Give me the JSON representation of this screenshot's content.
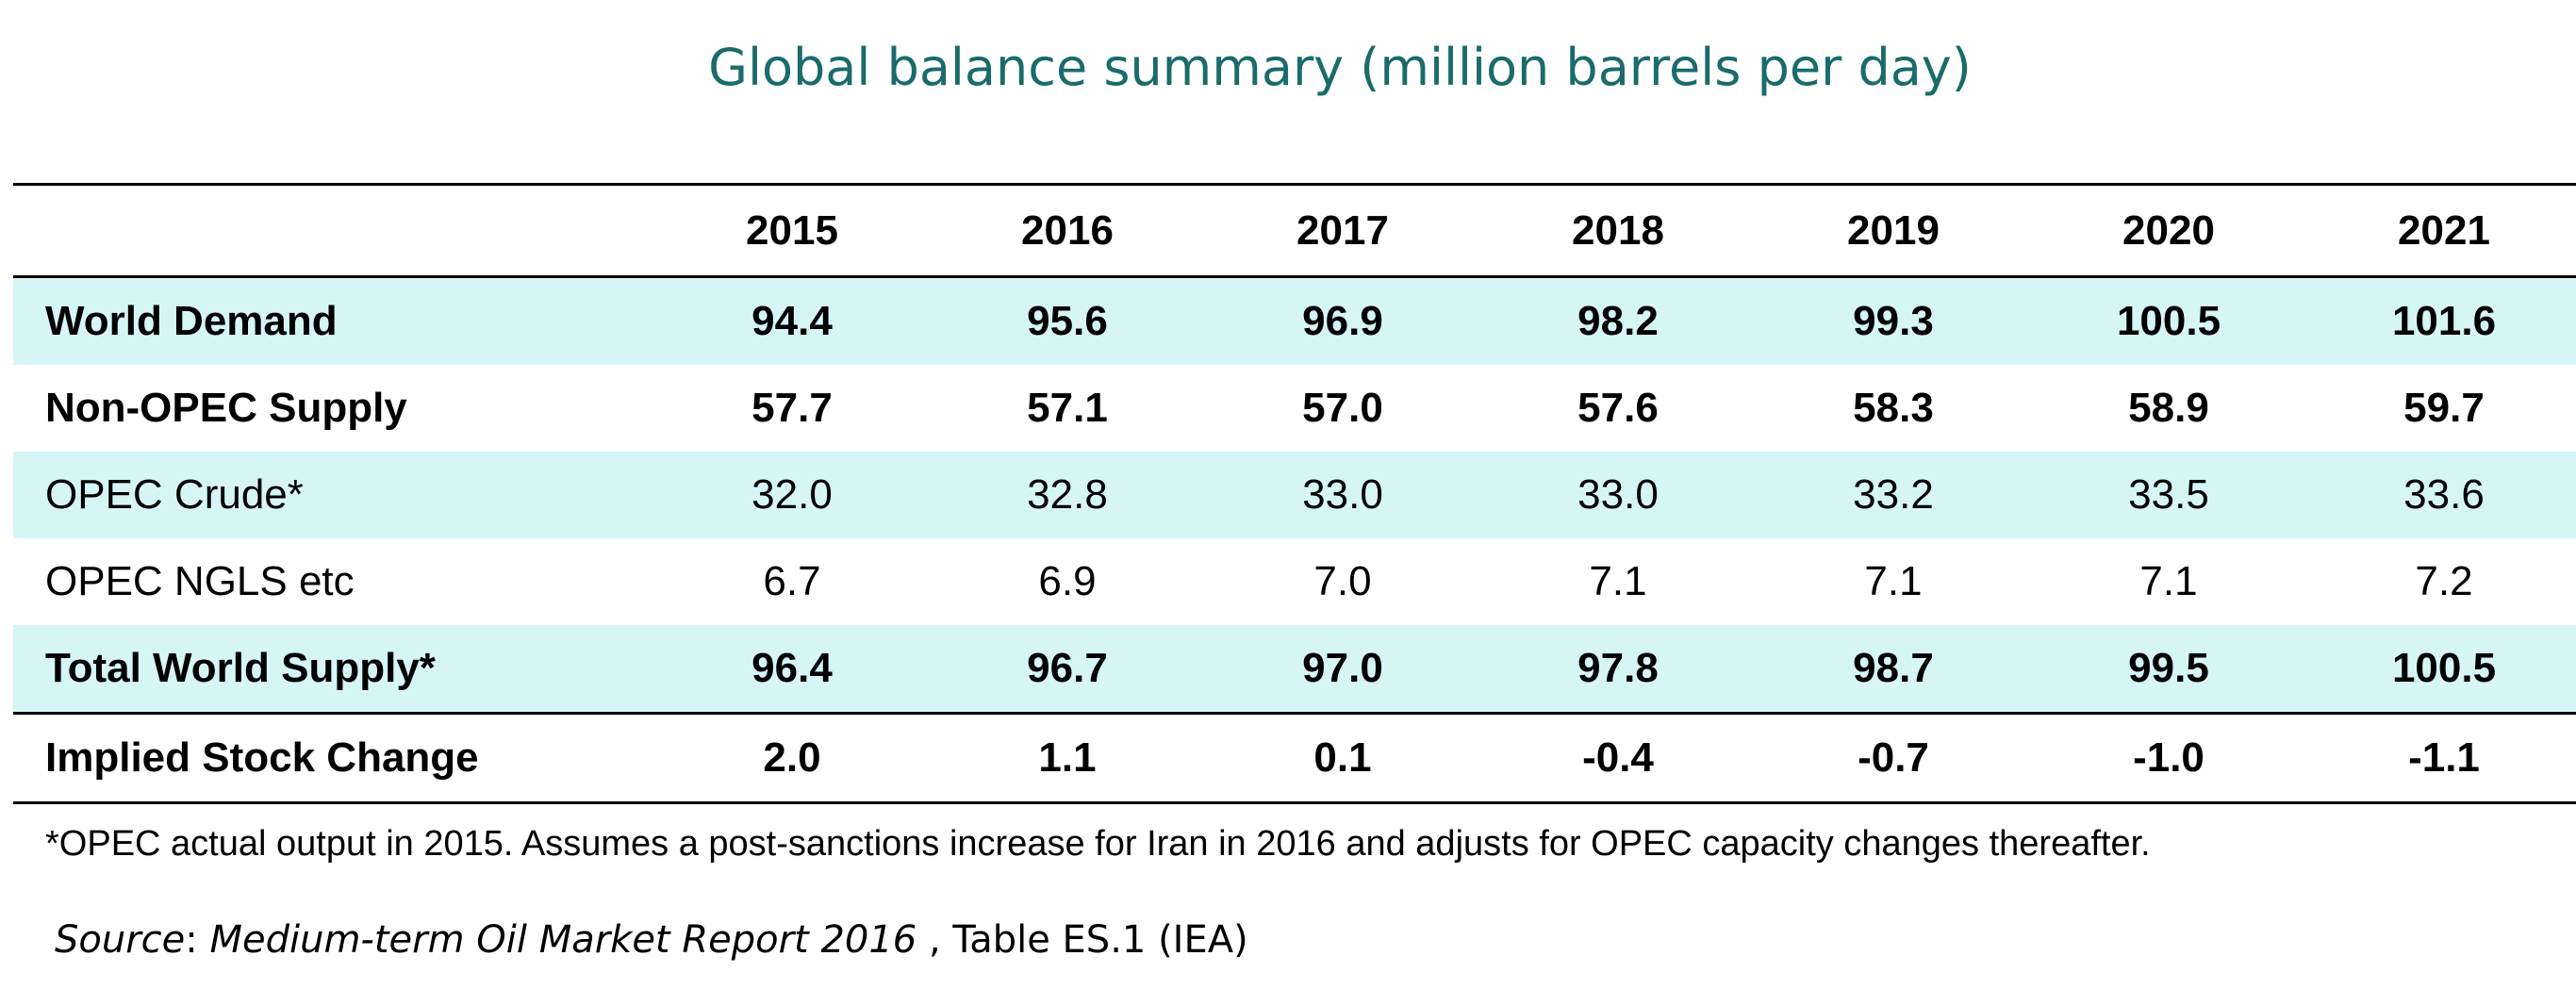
{
  "chart_data": {
    "type": "table",
    "title": "Global balance summary (million barrels per day)",
    "columns": [
      "2015",
      "2016",
      "2017",
      "2018",
      "2019",
      "2020",
      "2021"
    ],
    "rows": [
      {
        "label": "World Demand",
        "values": [
          "94.4",
          "95.6",
          "96.9",
          "98.2",
          "99.3",
          "100.5",
          "101.6"
        ],
        "bold": true,
        "shaded": true
      },
      {
        "label": "Non-OPEC Supply",
        "values": [
          "57.7",
          "57.1",
          "57.0",
          "57.6",
          "58.3",
          "58.9",
          "59.7"
        ],
        "bold": true,
        "shaded": false
      },
      {
        "label": "OPEC Crude*",
        "values": [
          "32.0",
          "32.8",
          "33.0",
          "33.0",
          "33.2",
          "33.5",
          "33.6"
        ],
        "bold": false,
        "shaded": true
      },
      {
        "label": "OPEC NGLS etc",
        "values": [
          "6.7",
          "6.9",
          "7.0",
          "7.1",
          "7.1",
          "7.1",
          "7.2"
        ],
        "bold": false,
        "shaded": false
      },
      {
        "label": "Total World Supply*",
        "values": [
          "96.4",
          "96.7",
          "97.0",
          "97.8",
          "98.7",
          "99.5",
          "100.5"
        ],
        "bold": true,
        "shaded": true
      },
      {
        "label": "Implied Stock Change",
        "values": [
          "2.0",
          "1.1",
          "0.1",
          "-0.4",
          "-0.7",
          "-1.0",
          "-1.1"
        ],
        "bold": true,
        "shaded": false
      }
    ],
    "footnote": "*OPEC actual output in 2015. Assumes a post-sanctions increase for Iran in 2016 and adjusts for OPEC capacity changes thereafter.",
    "source": {
      "label": "Source",
      "separator": ":",
      "publication": "Medium-term Oil Market Report 2016",
      "rest": " , Table ES.1 (IEA)"
    }
  },
  "colors": {
    "title": "#1a6b6b",
    "row_shade": "#d6f6f6",
    "rule": "#000000"
  }
}
